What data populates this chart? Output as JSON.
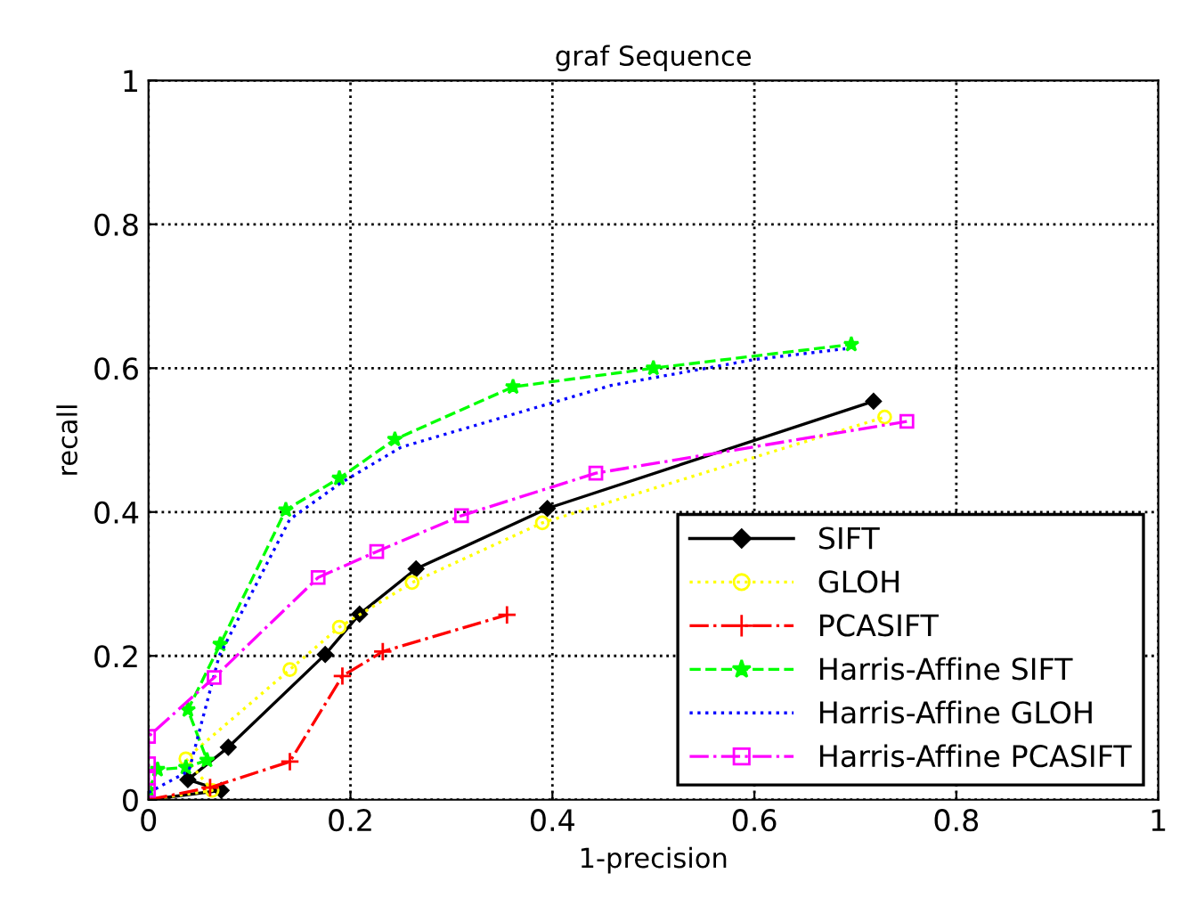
{
  "chart_data": {
    "type": "line",
    "title": "graf Sequence",
    "xlabel": "1-precision",
    "ylabel": "recall",
    "xlim": [
      0,
      1
    ],
    "ylim": [
      0,
      1
    ],
    "xticks": [
      0,
      0.2,
      0.4,
      0.6,
      0.8,
      1
    ],
    "yticks": [
      0,
      0.2,
      0.4,
      0.6,
      0.8,
      1
    ],
    "grid": true,
    "legend": "bottom right",
    "series": [
      {
        "name": "SIFT",
        "color": "#000000",
        "marker": "diamond",
        "line_style": "solid",
        "x": [
          0,
          0.072,
          0.039,
          0.079,
          0.175,
          0.209,
          0.265,
          0.395,
          0.718
        ],
        "values": [
          0,
          0.013,
          0.028,
          0.073,
          0.202,
          0.258,
          0.321,
          0.405,
          0.554
        ]
      },
      {
        "name": "GLOH",
        "color": "#ffff00",
        "marker": "circle",
        "line_style": "dotted",
        "x": [
          0,
          0.063,
          0.037,
          0.14,
          0.189,
          0.261,
          0.39,
          0.729
        ],
        "values": [
          0,
          0.013,
          0.057,
          0.181,
          0.24,
          0.302,
          0.385,
          0.532
        ]
      },
      {
        "name": "PCASIFT",
        "color": "#ff0000",
        "marker": "cross",
        "line_style": "dashdot",
        "x": [
          0,
          0.061,
          0.14,
          0.192,
          0.232,
          0.355
        ],
        "values": [
          0,
          0.017,
          0.053,
          0.172,
          0.206,
          0.257
        ]
      },
      {
        "name": "Harris-Affine SIFT",
        "color": "#00ff00",
        "marker": "star",
        "line_style": "dashed",
        "x": [
          0,
          0.009,
          0.037,
          0.058,
          0.039,
          0.071,
          0.136,
          0.189,
          0.244,
          0.361,
          0.5,
          0.696
        ],
        "values": [
          0.013,
          0.042,
          0.045,
          0.055,
          0.125,
          0.216,
          0.403,
          0.447,
          0.501,
          0.574,
          0.6,
          0.633
        ]
      },
      {
        "name": "Harris-Affine GLOH",
        "color": "#0000ff",
        "marker": "none",
        "line_style": "dotted",
        "x": [
          0,
          0.04,
          0.07,
          0.14,
          0.19,
          0.25,
          0.458,
          0.6,
          0.69
        ],
        "values": [
          0.01,
          0.04,
          0.2,
          0.39,
          0.44,
          0.49,
          0.576,
          0.612,
          0.627
        ]
      },
      {
        "name": "Harris-Affine PCASIFT",
        "color": "#ff00ff",
        "marker": "square",
        "line_style": "dashdot",
        "x": [
          0,
          0,
          0,
          0,
          0.065,
          0.168,
          0.226,
          0.31,
          0.443,
          0.751
        ],
        "values": [
          0.013,
          0.03,
          0.05,
          0.088,
          0.17,
          0.309,
          0.345,
          0.395,
          0.454,
          0.526
        ]
      }
    ]
  }
}
